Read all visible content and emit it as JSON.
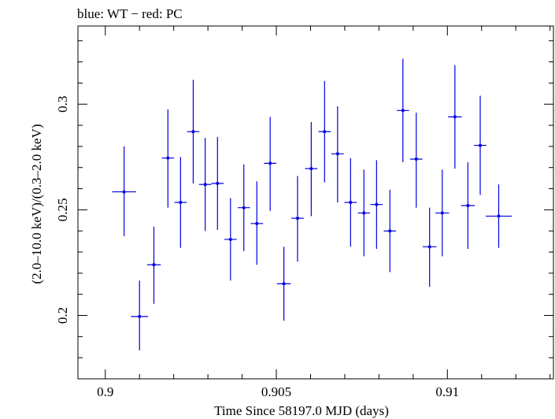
{
  "chart_data": {
    "type": "scatter",
    "title": "blue: WT − red: PC",
    "xlabel": "Time Since 58197.0 MJD (days)",
    "ylabel": "(2.0–10.0 keV)/(0.3–2.0 keV)",
    "xlim": [
      0.8992,
      0.9131
    ],
    "ylim": [
      0.17,
      0.337
    ],
    "xticks": [
      0.9,
      0.905,
      0.91
    ],
    "xtick_labels": [
      "0.9",
      "0.905",
      "0.91"
    ],
    "yticks": [
      0.2,
      0.25,
      0.3
    ],
    "ytick_labels": [
      "0.2",
      "0.25",
      "0.3"
    ],
    "grid": false,
    "legend": "none",
    "series": [
      {
        "name": "WT",
        "color": "#0000e0",
        "points": [
          {
            "x": 0.90055,
            "xerr": 0.00035,
            "y": 0.2585,
            "ylo": 0.2375,
            "yhi": 0.28
          },
          {
            "x": 0.901,
            "xerr": 0.00025,
            "y": 0.1995,
            "ylo": 0.1835,
            "yhi": 0.2165
          },
          {
            "x": 0.90142,
            "xerr": 0.0002,
            "y": 0.224,
            "ylo": 0.2055,
            "yhi": 0.242
          },
          {
            "x": 0.90183,
            "xerr": 0.00018,
            "y": 0.2745,
            "ylo": 0.251,
            "yhi": 0.2975
          },
          {
            "x": 0.9022,
            "xerr": 0.00018,
            "y": 0.2535,
            "ylo": 0.232,
            "yhi": 0.275
          },
          {
            "x": 0.90257,
            "xerr": 0.00018,
            "y": 0.287,
            "ylo": 0.2625,
            "yhi": 0.3115
          },
          {
            "x": 0.90292,
            "xerr": 0.00018,
            "y": 0.262,
            "ylo": 0.24,
            "yhi": 0.284
          },
          {
            "x": 0.90328,
            "xerr": 0.00018,
            "y": 0.2625,
            "ylo": 0.2405,
            "yhi": 0.2845
          },
          {
            "x": 0.90366,
            "xerr": 0.00018,
            "y": 0.236,
            "ylo": 0.2165,
            "yhi": 0.2555
          },
          {
            "x": 0.90405,
            "xerr": 0.00018,
            "y": 0.251,
            "ylo": 0.2305,
            "yhi": 0.2715
          },
          {
            "x": 0.90443,
            "xerr": 0.00018,
            "y": 0.2435,
            "ylo": 0.224,
            "yhi": 0.2635
          },
          {
            "x": 0.90482,
            "xerr": 0.00018,
            "y": 0.272,
            "ylo": 0.2495,
            "yhi": 0.294
          },
          {
            "x": 0.90522,
            "xerr": 0.0002,
            "y": 0.215,
            "ylo": 0.1975,
            "yhi": 0.2325
          },
          {
            "x": 0.90562,
            "xerr": 0.00018,
            "y": 0.246,
            "ylo": 0.2255,
            "yhi": 0.266
          },
          {
            "x": 0.90602,
            "xerr": 0.00018,
            "y": 0.2695,
            "ylo": 0.247,
            "yhi": 0.2915
          },
          {
            "x": 0.90641,
            "xerr": 0.00018,
            "y": 0.287,
            "ylo": 0.263,
            "yhi": 0.311
          },
          {
            "x": 0.90679,
            "xerr": 0.00018,
            "y": 0.2765,
            "ylo": 0.2535,
            "yhi": 0.299
          },
          {
            "x": 0.90717,
            "xerr": 0.00018,
            "y": 0.2535,
            "ylo": 0.2325,
            "yhi": 0.2745
          },
          {
            "x": 0.90756,
            "xerr": 0.00018,
            "y": 0.2485,
            "ylo": 0.228,
            "yhi": 0.269
          },
          {
            "x": 0.90793,
            "xerr": 0.00018,
            "y": 0.2525,
            "ylo": 0.2315,
            "yhi": 0.2735
          },
          {
            "x": 0.90832,
            "xerr": 0.00018,
            "y": 0.24,
            "ylo": 0.2205,
            "yhi": 0.2595
          },
          {
            "x": 0.9087,
            "xerr": 0.00018,
            "y": 0.297,
            "ylo": 0.2725,
            "yhi": 0.3215
          },
          {
            "x": 0.90909,
            "xerr": 0.00018,
            "y": 0.274,
            "ylo": 0.251,
            "yhi": 0.296
          },
          {
            "x": 0.90948,
            "xerr": 0.0002,
            "y": 0.2325,
            "ylo": 0.2135,
            "yhi": 0.251
          },
          {
            "x": 0.90985,
            "xerr": 0.0002,
            "y": 0.2485,
            "ylo": 0.228,
            "yhi": 0.269
          },
          {
            "x": 0.91022,
            "xerr": 0.0002,
            "y": 0.294,
            "ylo": 0.2695,
            "yhi": 0.3185
          },
          {
            "x": 0.9106,
            "xerr": 0.0002,
            "y": 0.252,
            "ylo": 0.2315,
            "yhi": 0.2725
          },
          {
            "x": 0.91096,
            "xerr": 0.00018,
            "y": 0.2805,
            "ylo": 0.257,
            "yhi": 0.304
          },
          {
            "x": 0.9115,
            "xerr": 0.00038,
            "y": 0.247,
            "ylo": 0.232,
            "yhi": 0.262
          }
        ]
      }
    ]
  }
}
